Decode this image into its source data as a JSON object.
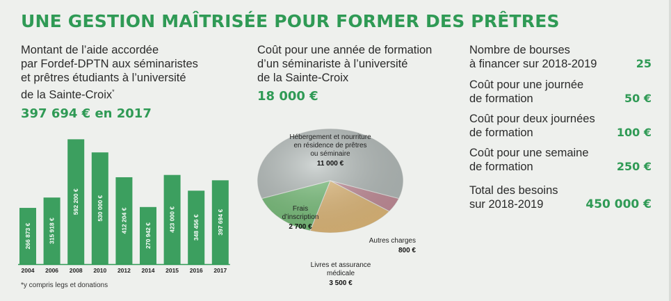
{
  "title": "UNE GESTION MAÎTRISÉE POUR FORMER DES PRÊTRES",
  "col1": {
    "lines": [
      "Montant de l’aide accordée",
      "par Fordef-DPTN aux séminaristes",
      "et prêtres étudiants à l’université",
      "de la Sainte-Croix"
    ],
    "asterisk": "*",
    "total": "397 694 € en 2017",
    "footnote": "*y compris legs et donations"
  },
  "col2": {
    "lines": [
      "Coût pour une année de formation",
      "d’un séminariste à l’université",
      "de la Sainte-Croix"
    ],
    "total": "18 000 €"
  },
  "col3": {
    "stats": [
      {
        "lines": [
          "Nombre de bourses",
          "à financer sur 2018-2019"
        ],
        "value": "25"
      },
      {
        "lines": [
          "Coût pour une journée",
          "de formation"
        ],
        "value": "50 €"
      },
      {
        "lines": [
          "Coût pour deux journées",
          "de formation"
        ],
        "value": "100 €"
      },
      {
        "lines": [
          "Coût pour une semaine",
          "de formation"
        ],
        "value": "250 €"
      },
      {
        "lines": [
          "Total des besoins",
          "sur 2018-2019"
        ],
        "value": "450 000 €"
      }
    ]
  },
  "colors": {
    "green": "#2f9a55",
    "bar": "#3c9f5f",
    "pie_grey": "#b9c1bf",
    "pie_green": "#7cc47e",
    "pie_orange": "#e7bf7e",
    "pie_pink": "#c9929e"
  },
  "chart_data": [
    {
      "type": "bar",
      "categories": [
        "2004",
        "2006",
        "2008",
        "2010",
        "2012",
        "2014",
        "2015",
        "2016",
        "2017"
      ],
      "values": [
        266873,
        315918,
        592200,
        530000,
        412204,
        270942,
        423000,
        348456,
        397694
      ],
      "labels": [
        "266 873 €",
        "315 918 €",
        "592 200 €",
        "530 000 €",
        "412 204 €",
        "270 942 €",
        "423 000 €",
        "348 456 €",
        "397 694 €"
      ],
      "ylim": [
        0,
        600000
      ],
      "xlabel": "",
      "ylabel": ""
    },
    {
      "type": "pie",
      "slices": [
        {
          "lines": [
            "Hébergement et nourriture",
            "en résidence de prêtres",
            "ou séminaire"
          ],
          "label": "11 000 €",
          "value": 11000
        },
        {
          "lines": [
            "Autres charges"
          ],
          "label": "800 €",
          "value": 800
        },
        {
          "lines": [
            "Livres et assurance",
            "médicale"
          ],
          "label": "3 500 €",
          "value": 3500
        },
        {
          "lines": [
            "Frais",
            "d’inscription"
          ],
          "label": "2 700 €",
          "value": 2700
        }
      ]
    }
  ]
}
